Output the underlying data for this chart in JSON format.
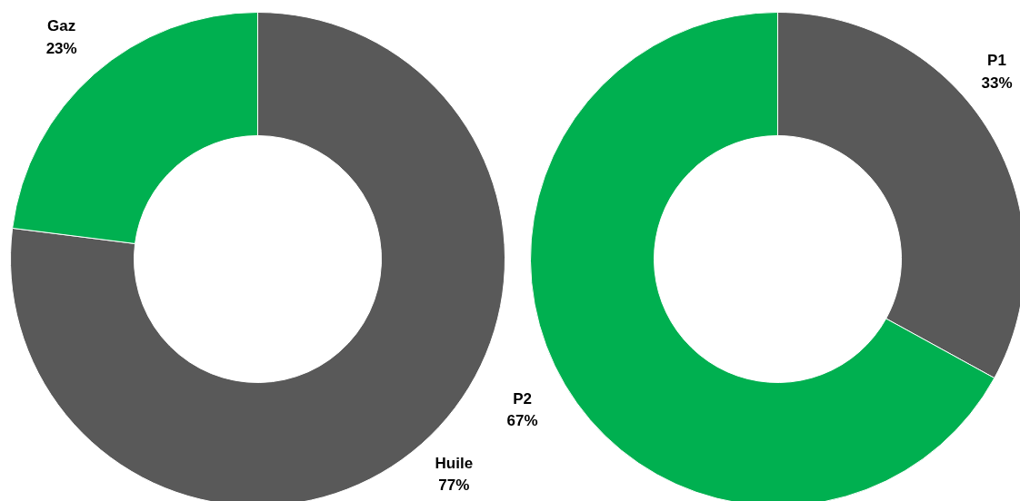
{
  "chart_data": [
    {
      "type": "donut",
      "categories": [
        "Huile",
        "Gaz"
      ],
      "values": [
        77,
        23
      ],
      "colors": [
        "#595959",
        "#00b050"
      ],
      "value_labels": [
        "77%",
        "23%"
      ]
    },
    {
      "type": "donut",
      "categories": [
        "P1",
        "P2"
      ],
      "values": [
        33,
        67
      ],
      "colors": [
        "#595959",
        "#00b050"
      ],
      "value_labels": [
        "33%",
        "67%"
      ]
    }
  ]
}
